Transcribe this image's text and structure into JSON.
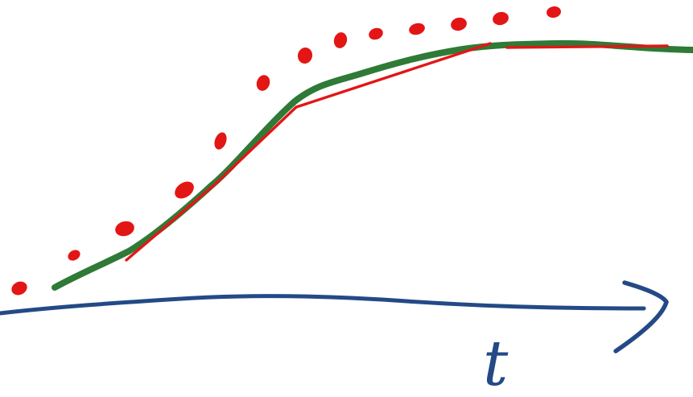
{
  "diagram": {
    "axis_label": "t",
    "colors": {
      "background": "#ffffff",
      "axis": "#234a86",
      "smooth_curve": "#2f7a36",
      "segments": "#e31616",
      "dots": "#e31616"
    }
  }
}
